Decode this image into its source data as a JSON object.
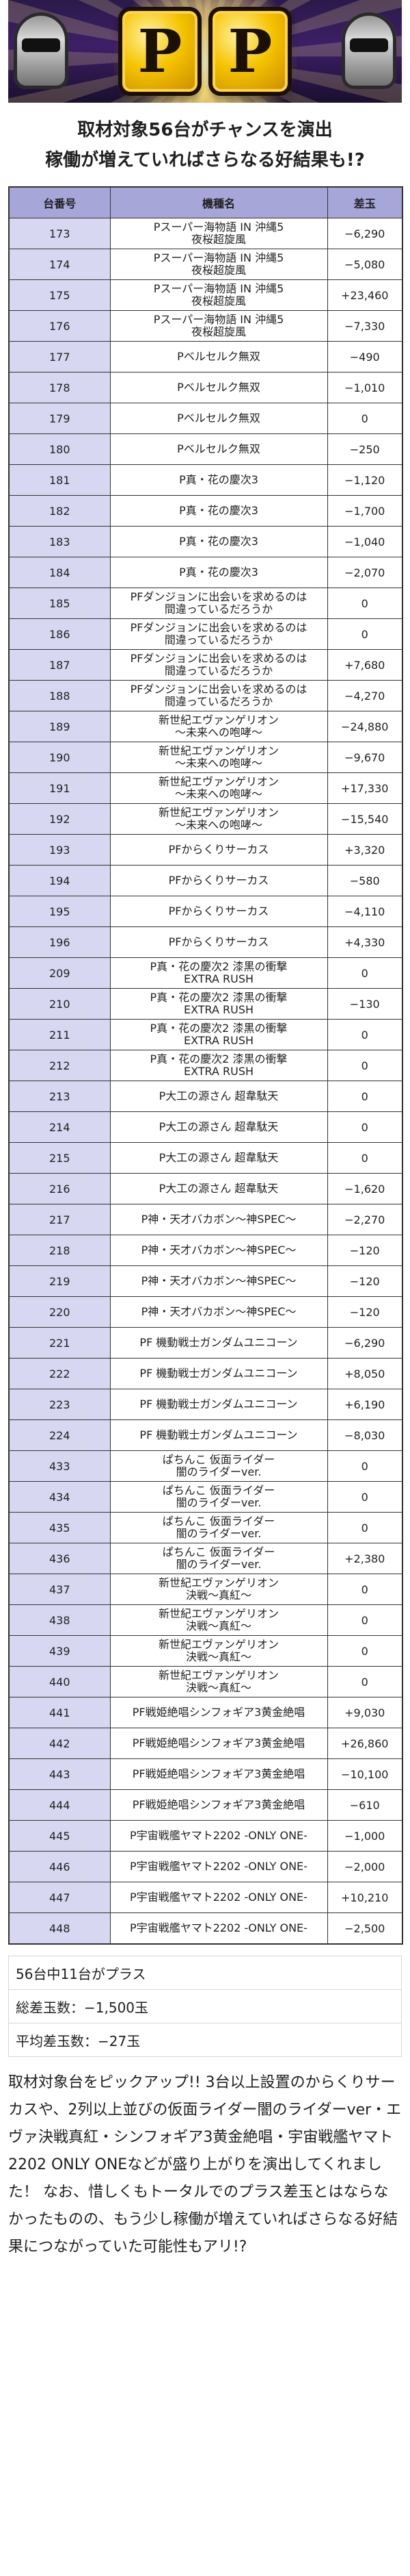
{
  "header": {
    "logo_letters": [
      "P",
      "P"
    ],
    "subtitle_line1": "取材対象56台がチャンスを演出",
    "subtitle_line2": "稼働が増えていればさらなる好結果も!?"
  },
  "table": {
    "headers": [
      "台番号",
      "機種名",
      "差玉"
    ],
    "rows": [
      {
        "no": "173",
        "model": "Pスーパー海物語 IN 沖縄5\n夜桜超旋風",
        "diff": "−6,290"
      },
      {
        "no": "174",
        "model": "Pスーパー海物語 IN 沖縄5\n夜桜超旋風",
        "diff": "−5,080"
      },
      {
        "no": "175",
        "model": "Pスーパー海物語 IN 沖縄5\n夜桜超旋風",
        "diff": "+23,460"
      },
      {
        "no": "176",
        "model": "Pスーパー海物語 IN 沖縄5\n夜桜超旋風",
        "diff": "−7,330"
      },
      {
        "no": "177",
        "model": "Pベルセルク無双",
        "diff": "−490"
      },
      {
        "no": "178",
        "model": "Pベルセルク無双",
        "diff": "−1,010"
      },
      {
        "no": "179",
        "model": "Pベルセルク無双",
        "diff": "0"
      },
      {
        "no": "180",
        "model": "Pベルセルク無双",
        "diff": "−250"
      },
      {
        "no": "181",
        "model": "P真・花の慶次3",
        "diff": "−1,120"
      },
      {
        "no": "182",
        "model": "P真・花の慶次3",
        "diff": "−1,700"
      },
      {
        "no": "183",
        "model": "P真・花の慶次3",
        "diff": "−1,040"
      },
      {
        "no": "184",
        "model": "P真・花の慶次3",
        "diff": "−2,070"
      },
      {
        "no": "185",
        "model": "PFダンジョンに出会いを求めるのは\n間違っているだろうか",
        "diff": "0"
      },
      {
        "no": "186",
        "model": "PFダンジョンに出会いを求めるのは\n間違っているだろうか",
        "diff": "0"
      },
      {
        "no": "187",
        "model": "PFダンジョンに出会いを求めるのは\n間違っているだろうか",
        "diff": "+7,680"
      },
      {
        "no": "188",
        "model": "PFダンジョンに出会いを求めるのは\n間違っているだろうか",
        "diff": "−4,270"
      },
      {
        "no": "189",
        "model": "新世紀エヴァンゲリオン\n〜未来への咆哮〜",
        "diff": "−24,880"
      },
      {
        "no": "190",
        "model": "新世紀エヴァンゲリオン\n〜未来への咆哮〜",
        "diff": "−9,670"
      },
      {
        "no": "191",
        "model": "新世紀エヴァンゲリオン\n〜未来への咆哮〜",
        "diff": "+17,330"
      },
      {
        "no": "192",
        "model": "新世紀エヴァンゲリオン\n〜未来への咆哮〜",
        "diff": "−15,540"
      },
      {
        "no": "193",
        "model": "PFからくりサーカス",
        "diff": "+3,320"
      },
      {
        "no": "194",
        "model": "PFからくりサーカス",
        "diff": "−580"
      },
      {
        "no": "195",
        "model": "PFからくりサーカス",
        "diff": "−4,110"
      },
      {
        "no": "196",
        "model": "PFからくりサーカス",
        "diff": "+4,330"
      },
      {
        "no": "209",
        "model": "P真・花の慶次2 漆黒の衝撃\nEXTRA RUSH",
        "diff": "0"
      },
      {
        "no": "210",
        "model": "P真・花の慶次2 漆黒の衝撃\nEXTRA RUSH",
        "diff": "−130"
      },
      {
        "no": "211",
        "model": "P真・花の慶次2 漆黒の衝撃\nEXTRA RUSH",
        "diff": "0"
      },
      {
        "no": "212",
        "model": "P真・花の慶次2 漆黒の衝撃\nEXTRA RUSH",
        "diff": "0"
      },
      {
        "no": "213",
        "model": "P大工の源さん 超韋駄天",
        "diff": "0"
      },
      {
        "no": "214",
        "model": "P大工の源さん 超韋駄天",
        "diff": "0"
      },
      {
        "no": "215",
        "model": "P大工の源さん 超韋駄天",
        "diff": "0"
      },
      {
        "no": "216",
        "model": "P大工の源さん 超韋駄天",
        "diff": "−1,620"
      },
      {
        "no": "217",
        "model": "P神・天才バカボン〜神SPEC〜",
        "diff": "−2,270"
      },
      {
        "no": "218",
        "model": "P神・天才バカボン〜神SPEC〜",
        "diff": "−120"
      },
      {
        "no": "219",
        "model": "P神・天才バカボン〜神SPEC〜",
        "diff": "−120"
      },
      {
        "no": "220",
        "model": "P神・天才バカボン〜神SPEC〜",
        "diff": "−120"
      },
      {
        "no": "221",
        "model": "PF 機動戦士ガンダムユニコーン",
        "diff": "−6,290"
      },
      {
        "no": "222",
        "model": "PF 機動戦士ガンダムユニコーン",
        "diff": "+8,050"
      },
      {
        "no": "223",
        "model": "PF 機動戦士ガンダムユニコーン",
        "diff": "+6,190"
      },
      {
        "no": "224",
        "model": "PF 機動戦士ガンダムユニコーン",
        "diff": "−8,030"
      },
      {
        "no": "433",
        "model": "ぱちんこ 仮面ライダー\n闇のライダーver.",
        "diff": "0"
      },
      {
        "no": "434",
        "model": "ぱちんこ 仮面ライダー\n闇のライダーver.",
        "diff": "0"
      },
      {
        "no": "435",
        "model": "ぱちんこ 仮面ライダー\n闇のライダーver.",
        "diff": "0"
      },
      {
        "no": "436",
        "model": "ぱちんこ 仮面ライダー\n闇のライダーver.",
        "diff": "+2,380"
      },
      {
        "no": "437",
        "model": "新世紀エヴァンゲリオン\n決戦〜真紅〜",
        "diff": "0"
      },
      {
        "no": "438",
        "model": "新世紀エヴァンゲリオン\n決戦〜真紅〜",
        "diff": "0"
      },
      {
        "no": "439",
        "model": "新世紀エヴァンゲリオン\n決戦〜真紅〜",
        "diff": "0"
      },
      {
        "no": "440",
        "model": "新世紀エヴァンゲリオン\n決戦〜真紅〜",
        "diff": "0"
      },
      {
        "no": "441",
        "model": "PF戦姫絶唱シンフォギア3黄金絶唱",
        "diff": "+9,030"
      },
      {
        "no": "442",
        "model": "PF戦姫絶唱シンフォギア3黄金絶唱",
        "diff": "+26,860"
      },
      {
        "no": "443",
        "model": "PF戦姫絶唱シンフォギア3黄金絶唱",
        "diff": "−10,100"
      },
      {
        "no": "444",
        "model": "PF戦姫絶唱シンフォギア3黄金絶唱",
        "diff": "−610"
      },
      {
        "no": "445",
        "model": "P宇宙戦艦ヤマト2202 -ONLY ONE-",
        "diff": "−1,000"
      },
      {
        "no": "446",
        "model": "P宇宙戦艦ヤマト2202 -ONLY ONE-",
        "diff": "−2,000"
      },
      {
        "no": "447",
        "model": "P宇宙戦艦ヤマト2202 -ONLY ONE-",
        "diff": "+10,210"
      },
      {
        "no": "448",
        "model": "P宇宙戦艦ヤマト2202 -ONLY ONE-",
        "diff": "−2,500"
      }
    ]
  },
  "summary": {
    "plus_units": "56台中11台がプラス",
    "total_diff": "総差玉数：−1,500玉",
    "avg_diff": "平均差玉数：−27玉"
  },
  "comment": {
    "text": "取材対象台をピックアップ!! 3台以上設置のからくりサーカスや、2列以上並びの仮面ライダー闇のライダーver・エヴァ決戦真紅・シンフォギア3黄金絶唱・宇宙戦艦ヤマト2202 ONLY ONEなどが盛り上がりを演出してくれました！ なお、惜しくもトータルでのプラス差玉とはならなかったものの、もう少し稼働が増えていればさらなる好結果につながっていた可能性もアリ!?"
  }
}
